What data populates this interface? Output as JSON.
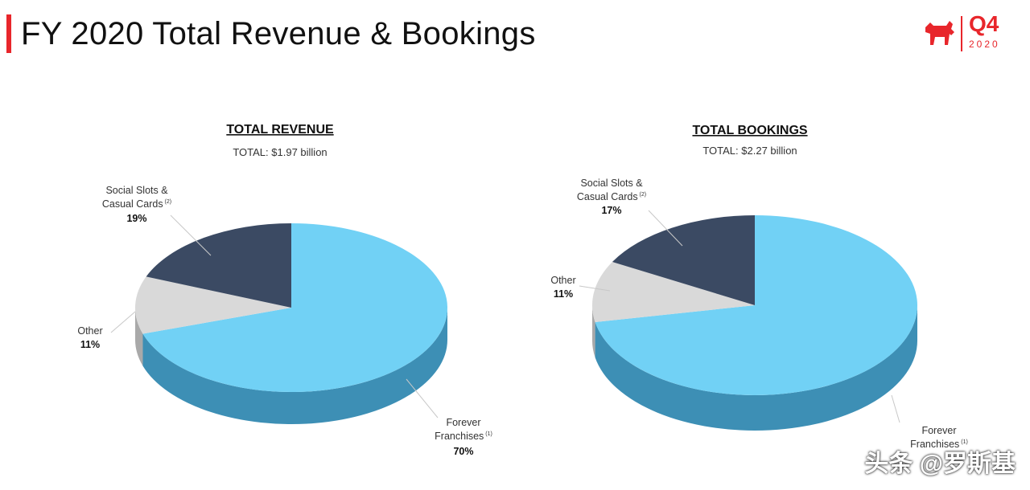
{
  "header": {
    "title": "FY 2020 Total Revenue & Bookings",
    "quarter": "Q4",
    "year": "2020",
    "brand_color": "#e8262b"
  },
  "colors": {
    "Forever Franchises": "#71d1f5",
    "Forever Franchises side": "#3d8fb5",
    "Other": "#d9d9d9",
    "Other side": "#a9a9a9",
    "Social Slots & Casual Cards": "#3b4a63",
    "Social Slots & Casual Cards side": "#27334a"
  },
  "chart_data": [
    {
      "type": "pie",
      "title": "TOTAL REVENUE",
      "subtitle": "TOTAL: $1.97 billion",
      "slices": [
        {
          "label_line1": "Forever",
          "label_line2": "Franchises",
          "footnote": "(1)",
          "value": 70,
          "value_label": "70%"
        },
        {
          "label_line1": "Other",
          "label_line2": "",
          "footnote": "",
          "value": 11,
          "value_label": "11%"
        },
        {
          "label_line1": "Social Slots &",
          "label_line2": "Casual Cards",
          "footnote": "(2)",
          "value": 19,
          "value_label": "19%"
        }
      ],
      "legend": "none"
    },
    {
      "type": "pie",
      "title": "TOTAL BOOKINGS",
      "subtitle": "TOTAL: $2.27 billion",
      "slices": [
        {
          "label_line1": "Forever",
          "label_line2": "Franchises",
          "footnote": "(1)",
          "value": 72,
          "value_label": ""
        },
        {
          "label_line1": "Other",
          "label_line2": "",
          "footnote": "",
          "value": 11,
          "value_label": "11%"
        },
        {
          "label_line1": "Social Slots &",
          "label_line2": "Casual Cards",
          "footnote": "(2)",
          "value": 17,
          "value_label": "17%"
        }
      ],
      "legend": "none"
    }
  ],
  "watermark": "头条 @罗斯基"
}
